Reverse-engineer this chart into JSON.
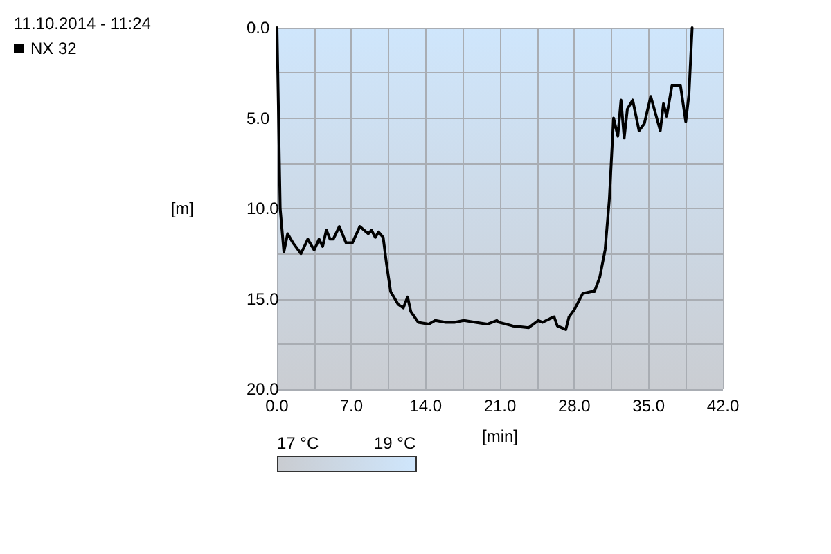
{
  "chart_data": {
    "type": "line",
    "title": "11.10.2014 - 11:24",
    "xlabel": "[min]",
    "ylabel": "[m]",
    "x": [
      0,
      0.3,
      0.65,
      1.0,
      1.5,
      2.26,
      2.9,
      3.5,
      3.96,
      4.3,
      4.65,
      5.0,
      5.3,
      5.87,
      6.5,
      7.1,
      7.8,
      8.6,
      8.9,
      9.26,
      9.56,
      10.0,
      10.3,
      10.7,
      11.4,
      11.9,
      12.3,
      12.6,
      13.3,
      14.3,
      14.9,
      15.9,
      16.7,
      17.6,
      18.7,
      19.8,
      20.7,
      20.9,
      22.2,
      23.7,
      24.6,
      25.0,
      25.7,
      26.1,
      26.4,
      27.2,
      27.5,
      28.0,
      28.8,
      29.6,
      29.9,
      30.4,
      30.9,
      31.3,
      31.7,
      32.1,
      32.4,
      32.7,
      33.0,
      33.5,
      34.1,
      34.6,
      35.2,
      36.1,
      36.4,
      36.7,
      37.2,
      38.0,
      38.5,
      38.8,
      39.1
    ],
    "series": [
      {
        "name": "NX 32",
        "color": "#000000",
        "values": [
          0,
          10.0,
          12.4,
          11.4,
          11.9,
          12.5,
          11.7,
          12.3,
          11.7,
          12.1,
          11.2,
          11.7,
          11.7,
          11.0,
          11.9,
          11.9,
          11.0,
          11.4,
          11.2,
          11.6,
          11.3,
          11.6,
          13.0,
          14.6,
          15.3,
          15.5,
          14.9,
          15.7,
          16.3,
          16.4,
          16.2,
          16.3,
          16.3,
          16.2,
          16.3,
          16.4,
          16.2,
          16.3,
          16.5,
          16.6,
          16.2,
          16.3,
          16.1,
          16.0,
          16.5,
          16.7,
          16.0,
          15.6,
          14.7,
          14.6,
          14.6,
          13.8,
          12.3,
          9.5,
          5.0,
          6.0,
          4.0,
          6.1,
          4.5,
          4.0,
          5.7,
          5.3,
          3.8,
          5.7,
          4.2,
          4.9,
          3.2,
          3.2,
          5.2,
          3.7,
          0
        ]
      }
    ],
    "xlim": [
      0,
      42
    ],
    "xticks": [
      {
        "value": 0,
        "label": "0.0"
      },
      {
        "value": 7,
        "label": "7.0"
      },
      {
        "value": 14,
        "label": "14.0"
      },
      {
        "value": 21,
        "label": "21.0"
      },
      {
        "value": 28,
        "label": "28.0"
      },
      {
        "value": 35,
        "label": "35.0"
      },
      {
        "value": 42,
        "label": "42.0"
      }
    ],
    "ylim": [
      20,
      0
    ],
    "yticks": [
      {
        "value": 0,
        "label": "0.0"
      },
      {
        "value": 5,
        "label": "5.0"
      },
      {
        "value": 10,
        "label": "10.0"
      },
      {
        "value": 15,
        "label": "15.0"
      },
      {
        "value": 20,
        "label": "20.0"
      }
    ],
    "grid": true,
    "legend": "top left",
    "marker": "none",
    "line_style": "solid",
    "annotations": [
      "17 °C",
      "19 °C"
    ]
  }
}
